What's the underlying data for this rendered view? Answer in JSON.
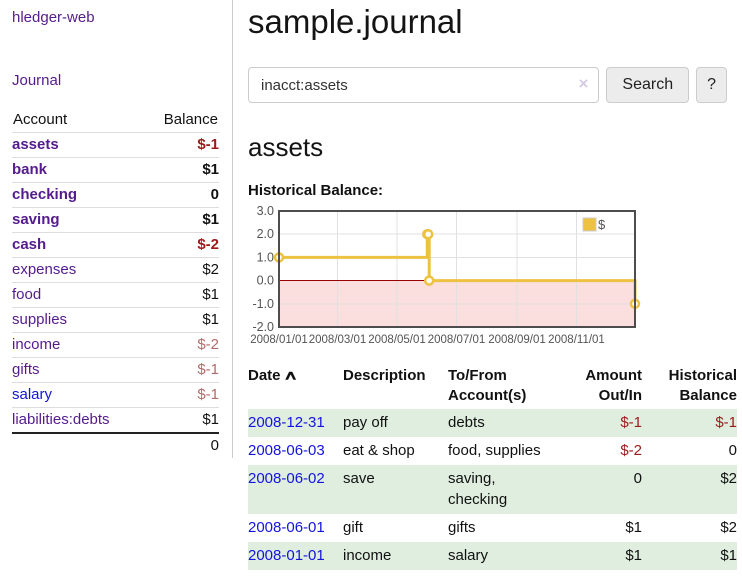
{
  "colors": {
    "link_purple": "#551b8c",
    "link_blue": "#1414dd",
    "negative_strong": "#9d1a1a",
    "negative_faint": "#b36a6a",
    "row_shade_green": "#dfeede",
    "chart_line_yellow": "#edc240",
    "chart_negative_band_pink": "#fbdede",
    "chart_zero_line_red": "#990000",
    "chart_border_gray": "#4d4d4d",
    "grid_gray": "#e0e0e0",
    "axis_text_gray": "#545454"
  },
  "sidebar": {
    "brand": "hledger-web",
    "journal_link": "Journal",
    "accounts_table": {
      "headers": {
        "account": "Account",
        "balance": "Balance"
      },
      "rows": [
        {
          "label": "assets",
          "indent": 1,
          "bold": true,
          "link": "purple",
          "balance": "$-1",
          "bclass": "neg"
        },
        {
          "label": "bank",
          "indent": 2,
          "bold": true,
          "link": "purple",
          "balance": "$1",
          "bclass": ""
        },
        {
          "label": "checking",
          "indent": 3,
          "bold": true,
          "link": "purple",
          "balance": "0",
          "bclass": ""
        },
        {
          "label": "saving",
          "indent": 3,
          "bold": true,
          "link": "purple",
          "balance": "$1",
          "bclass": ""
        },
        {
          "label": "cash",
          "indent": 2,
          "bold": true,
          "link": "purple",
          "balance": "$-2",
          "bclass": "neg"
        },
        {
          "label": "expenses",
          "indent": 1,
          "bold": false,
          "link": "purple",
          "balance": "$2",
          "bclass": ""
        },
        {
          "label": "food",
          "indent": 2,
          "bold": false,
          "link": "purple",
          "balance": "$1",
          "bclass": ""
        },
        {
          "label": "supplies",
          "indent": 2,
          "bold": false,
          "link": "purple",
          "balance": "$1",
          "bclass": ""
        },
        {
          "label": "income",
          "indent": 1,
          "bold": false,
          "link": "purple",
          "balance": "$-2",
          "bclass": "neg-faint"
        },
        {
          "label": "gifts",
          "indent": 2,
          "bold": false,
          "link": "purple",
          "balance": "$-1",
          "bclass": "neg-faint"
        },
        {
          "label": "salary",
          "indent": 2,
          "bold": false,
          "link": "blue",
          "balance": "$-1",
          "bclass": "neg-faint"
        },
        {
          "label": "liabilities:debts",
          "indent": 1,
          "bold": false,
          "link": "purple",
          "balance": "$1",
          "bclass": ""
        }
      ],
      "total": "0"
    }
  },
  "main": {
    "title": "sample.journal",
    "search": {
      "value": "inacct:assets",
      "clear_icon": "×",
      "search_button": "Search",
      "help_button": "?"
    },
    "account_heading": "assets",
    "chart_heading": "Historical Balance:"
  },
  "chart_data": {
    "type": "line",
    "title": "Historical Balance:",
    "xlabel": "",
    "ylabel": "",
    "step": true,
    "grid": true,
    "legend_position": "top-right",
    "series": [
      {
        "name": "$",
        "color": "#edc240",
        "points": [
          [
            "2008-01-01",
            1
          ],
          [
            "2008-06-01",
            2
          ],
          [
            "2008-06-02",
            2
          ],
          [
            "2008-06-03",
            0
          ],
          [
            "2008-12-31",
            -1
          ]
        ]
      }
    ],
    "x_range": [
      "2008-01-01",
      "2008-12-31"
    ],
    "ylim": [
      -2,
      3
    ],
    "y_ticks": [
      3.0,
      2.0,
      1.0,
      0.0,
      -1.0,
      -2.0
    ],
    "x_ticks": [
      "2008/01/01",
      "2008/03/01",
      "2008/05/01",
      "2008/07/01",
      "2008/09/01",
      "2008/11/01"
    ],
    "negative_region_color": "#fbdede",
    "zero_line_color": "#990000"
  },
  "register": {
    "headers": [
      "Date",
      "Description",
      "To/From\nAccount(s)",
      "Amount\nOut/In",
      "Historical\nBalance"
    ],
    "sort_icon": "∧",
    "rows": [
      {
        "date": "2008-12-31",
        "description": "pay off",
        "accounts": "debts",
        "amount": "$-1",
        "amount_neg": true,
        "balance": "$-1",
        "balance_neg": true,
        "shaded": true
      },
      {
        "date": "2008-06-03",
        "description": "eat & shop",
        "accounts": "food, supplies",
        "amount": "$-2",
        "amount_neg": true,
        "balance": "0",
        "balance_neg": false,
        "shaded": false
      },
      {
        "date": "2008-06-02",
        "description": "save",
        "accounts": "saving,\nchecking",
        "amount": "0",
        "amount_neg": false,
        "balance": "$2",
        "balance_neg": false,
        "shaded": true
      },
      {
        "date": "2008-06-01",
        "description": "gift",
        "accounts": "gifts",
        "amount": "$1",
        "amount_neg": false,
        "balance": "$2",
        "balance_neg": false,
        "shaded": false
      },
      {
        "date": "2008-01-01",
        "description": "income",
        "accounts": "salary",
        "amount": "$1",
        "amount_neg": false,
        "balance": "$1",
        "balance_neg": false,
        "shaded": true
      }
    ]
  }
}
